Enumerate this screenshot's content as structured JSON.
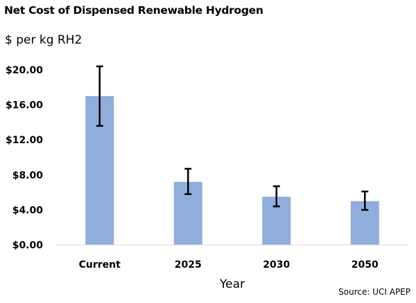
{
  "chart_data": {
    "type": "bar",
    "title": "Net Cost of Dispensed Renewable Hydrogen",
    "ylabel": "$ per kg RH2",
    "xlabel": "Year",
    "source": "Source: UCI APEP",
    "categories": [
      "Current",
      "2025",
      "2030",
      "2050"
    ],
    "values": [
      17.0,
      7.2,
      5.5,
      5.0
    ],
    "error_low": [
      13.6,
      5.8,
      4.4,
      4.0
    ],
    "error_high": [
      20.4,
      8.7,
      6.7,
      6.1
    ],
    "ylim": [
      0,
      20
    ],
    "yticks": [
      0,
      4,
      8,
      12,
      16,
      20
    ],
    "ytick_labels": [
      "$0.00",
      "$4.00",
      "$8.00",
      "$12.00",
      "$16.00",
      "$20.00"
    ],
    "bar_color": "#8faedc",
    "error_bar_color": "#000000",
    "grid": false,
    "legend": "none"
  }
}
